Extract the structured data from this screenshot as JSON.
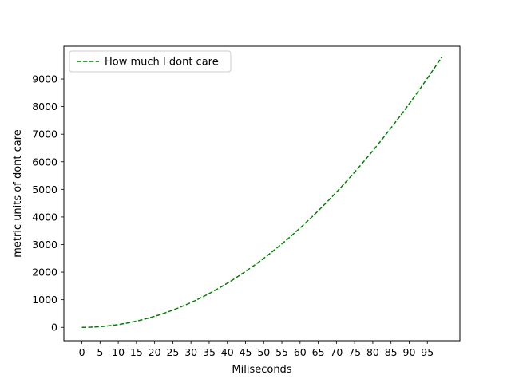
{
  "chart_data": {
    "type": "line",
    "title": "",
    "xlabel": "Miliseconds",
    "ylabel": "metric units of dont care",
    "xlim": [
      -4.95,
      103.95
    ],
    "ylim": [
      -485.1,
      10187.1
    ],
    "xticks": [
      0,
      5,
      10,
      15,
      20,
      25,
      30,
      35,
      40,
      45,
      50,
      55,
      60,
      65,
      70,
      75,
      80,
      85,
      90,
      95
    ],
    "yticks": [
      0,
      1000,
      2000,
      3000,
      4000,
      5000,
      6000,
      7000,
      8000,
      9000
    ],
    "grid": false,
    "legend_position": "upper-left",
    "series": [
      {
        "name": "How much I dont care",
        "color": "#008000",
        "line_style": "dashed",
        "function": "x^2",
        "x_start": 0,
        "x_end": 99,
        "x_step": 1
      }
    ]
  }
}
